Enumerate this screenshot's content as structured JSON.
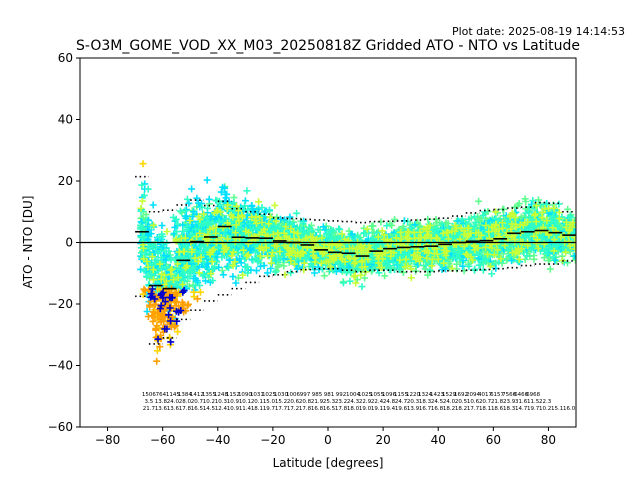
{
  "plot_date": "Plot date: 2025-08-19 14:14:53",
  "chart_data": {
    "type": "scatter",
    "title": "S-O3M_GOME_VOD_XX_M03_20250818Z Gridded ATO - NTO vs Latitude",
    "xlabel": "Latitude [degrees]",
    "ylabel": "ATO - NTO [DU]",
    "xlim": [
      -90,
      90
    ],
    "ylim": [
      -60,
      60
    ],
    "xticks": [
      -80,
      -60,
      -40,
      -20,
      0,
      20,
      40,
      60,
      80
    ],
    "yticks": [
      -60,
      -40,
      -20,
      0,
      20,
      40,
      60
    ],
    "xtick_labels": [
      "−80",
      "−60",
      "−40",
      "−20",
      "0",
      "20",
      "40",
      "60",
      "80"
    ],
    "ytick_labels": [
      "−60",
      "−40",
      "−20",
      "0",
      "20",
      "40",
      "60"
    ],
    "grid": false,
    "zero_line": 0,
    "marker": "plus",
    "cloud_colors": [
      "#5fff8f",
      "#00e0ff",
      "#2fffc7",
      "#c8ff37",
      "#ffd700",
      "#ff9f00",
      "#0000cd",
      "#007fff"
    ],
    "bin_centers": [
      -67.5,
      -62.5,
      -57.5,
      -52.5,
      -47.5,
      -42.5,
      -37.5,
      -32.5,
      -27.5,
      -22.5,
      -17.5,
      -12.5,
      -7.5,
      -2.5,
      2.5,
      7.5,
      12.5,
      17.5,
      22.5,
      27.5,
      32.5,
      37.5,
      42.5,
      47.5,
      52.5,
      57.5,
      62.5,
      67.5,
      72.5,
      77.5,
      82.5,
      87.5
    ],
    "bin_mean": [
      3.5,
      -14.0,
      -15.0,
      -5.8,
      0.3,
      1.8,
      5.2,
      1.7,
      1.5,
      1.4,
      0.5,
      0.0,
      -0.8,
      -2.4,
      -3.2,
      -3.5,
      -4.4,
      -2.8,
      -2.0,
      -1.6,
      -1.4,
      -1.2,
      -0.6,
      0.0,
      0.4,
      0.6,
      1.2,
      3.0,
      3.5,
      3.9,
      3.2,
      2.4
    ],
    "bin_upper": [
      21.4,
      10.0,
      10.5,
      12.2,
      13.8,
      12.0,
      13.4,
      11.0,
      10.0,
      9.2,
      8.0,
      7.8,
      7.5,
      7.3,
      7.0,
      6.8,
      6.5,
      6.8,
      6.9,
      7.0,
      7.3,
      7.6,
      7.9,
      8.6,
      9.6,
      10.4,
      10.7,
      11.2,
      11.5,
      13.0,
      12.8,
      10.0
    ],
    "bin_lower": [
      -17.5,
      -33.0,
      -31.0,
      -25.0,
      -22.0,
      -19.0,
      -17.0,
      -15.0,
      -13.0,
      -11.0,
      -10.5,
      -9.5,
      -8.8,
      -8.5,
      -8.5,
      -9.0,
      -9.5,
      -9.0,
      -9.0,
      -9.5,
      -9.5,
      -9.5,
      -9.2,
      -9.2,
      -9.0,
      -8.8,
      -8.5,
      -8.2,
      -7.5,
      -7.0,
      -7.0,
      -6.0
    ],
    "bin_text_rows": [
      [
        "1506",
        "3.5",
        "21.7"
      ],
      [
        "764",
        "13.8",
        "13.6"
      ],
      [
        "1145",
        "24.0",
        "13.6"
      ],
      [
        "1384",
        "28.0",
        "17.8"
      ],
      [
        "1412",
        "20.7",
        "16.5"
      ],
      [
        "1355",
        "10.2",
        "14.5"
      ],
      [
        "1248",
        "10.3",
        "12.4"
      ],
      [
        "1152",
        "10.9",
        "10.9"
      ],
      [
        "1090",
        "10.1",
        "11.4"
      ],
      [
        "1031",
        "20.1",
        "18.1"
      ],
      [
        "1025",
        "15.0",
        "19.7"
      ],
      [
        "1030",
        "15.2",
        "17.7"
      ],
      [
        "1006",
        "20.6",
        "17.2"
      ],
      [
        "997",
        "20.8",
        "17.8"
      ],
      [
        "985",
        "21.9",
        "16.8"
      ],
      [
        "981",
        "25.3",
        "16.5"
      ],
      [
        "992",
        "23.2",
        "17.8"
      ],
      [
        "1004",
        "24.3",
        "18.0"
      ],
      [
        "1025",
        "22.9",
        "19.0"
      ],
      [
        "1055",
        "22.4",
        "19.1"
      ],
      [
        "1096",
        "24.8",
        "19.4"
      ],
      [
        "1155",
        "24.7",
        "19.6"
      ],
      [
        "1220",
        "20.3",
        "13.9"
      ],
      [
        "1324",
        "18.3",
        "16.7"
      ],
      [
        "1423",
        "24.5",
        "16.8"
      ],
      [
        "1529",
        "24.0",
        "18.2"
      ],
      [
        "1692",
        "20.5",
        "18.2"
      ],
      [
        "2094",
        "10.6",
        "17.7"
      ],
      [
        "4017",
        "20.7",
        "18.1"
      ],
      [
        "6157",
        "21.8",
        "18.6"
      ],
      [
        "7566",
        "23.9",
        "18.3"
      ],
      [
        "6466",
        "31.6",
        "14.7"
      ],
      [
        "6968",
        "11.5",
        "19.7"
      ],
      [
        "",
        "22.3",
        "10.2"
      ],
      [
        "",
        "",
        "15.1"
      ],
      [
        "",
        "",
        "16.0"
      ]
    ]
  }
}
